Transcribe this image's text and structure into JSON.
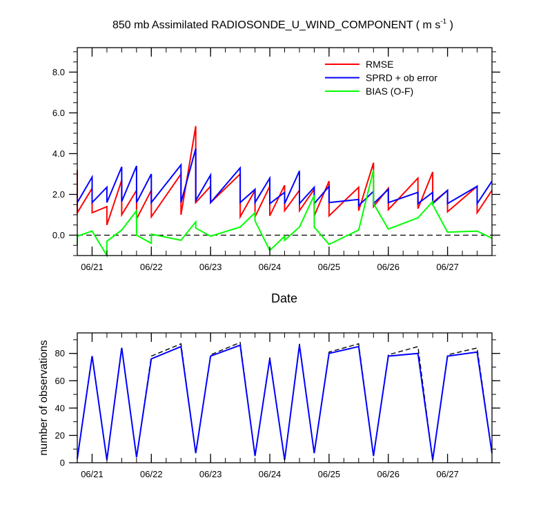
{
  "colors": {
    "rmse": "#ff0000",
    "sprd": "#0000ff",
    "bias": "#00ff00",
    "assimilated": "#0000ff",
    "possible": "#000000",
    "zero": "#000000"
  },
  "chart_data": [
    {
      "type": "line",
      "title": "850 mb Assimilated RADIOSONDE_U_WIND_COMPONENT ( m s",
      "title_superscript": "-1",
      "title_suffix": " )",
      "xlabel": "Date",
      "ylabel": "",
      "xlim": [
        0,
        7
      ],
      "ylim": [
        -1,
        9.2
      ],
      "xticks": [
        0.25,
        1.25,
        2.25,
        3.25,
        4.25,
        5.25,
        6.25
      ],
      "xticklabels": [
        "06/21",
        "06/22",
        "06/23",
        "06/24",
        "06/25",
        "06/26",
        "06/27"
      ],
      "yticks": [
        0,
        2,
        4,
        6,
        8
      ],
      "yticklabels": [
        "0.0",
        "2.0",
        "4.0",
        "6.0",
        "8.0"
      ],
      "zero_line": true,
      "legend": [
        "RMSE",
        "SPRD + ob error",
        "BIAS (O-F)"
      ],
      "series": [
        {
          "name": "RMSE",
          "x": [
            0,
            0,
            0.25,
            0.25,
            0.5,
            0.5,
            0.75,
            0.75,
            1,
            1,
            1.25,
            1.25,
            1.75,
            1.75,
            2,
            2,
            2.25,
            2.25,
            2.75,
            2.75,
            3,
            3,
            3.25,
            3.25,
            3.5,
            3.5,
            3.75,
            3.75,
            4,
            4,
            4.25,
            4.25,
            4.75,
            4.75,
            5,
            5,
            5.25,
            5.25,
            5.75,
            5.75,
            6,
            6,
            6.25,
            6.25,
            6.75,
            6.75,
            7
          ],
          "y": [
            3.2,
            1.1,
            2.3,
            1.1,
            1.4,
            0.5,
            2.7,
            1.0,
            2.2,
            0.8,
            2.2,
            0.9,
            3.0,
            1.0,
            5.35,
            1.6,
            2.4,
            1.6,
            3.0,
            0.9,
            2.2,
            0.9,
            2.4,
            0.95,
            2.45,
            1.2,
            2.2,
            1.2,
            2.25,
            0.95,
            2.65,
            0.95,
            2.35,
            1.2,
            3.55,
            1.4,
            2.3,
            1.25,
            2.8,
            1.3,
            3.1,
            1.6,
            2.2,
            1.15,
            2.4,
            1.1,
            2.2
          ]
        },
        {
          "name": "SPRD + ob error",
          "x": [
            0,
            0.25,
            0.25,
            0.5,
            0.5,
            0.75,
            0.75,
            1,
            1,
            1.25,
            1.25,
            1.75,
            1.75,
            2,
            2,
            2.25,
            2.25,
            2.75,
            2.75,
            3,
            3,
            3.25,
            3.25,
            3.5,
            3.5,
            3.75,
            3.75,
            4,
            4,
            4.25,
            4.25,
            4.75,
            4.75,
            5,
            5,
            5.25,
            5.25,
            5.75,
            5.75,
            6,
            6,
            6.25,
            6.25,
            6.75,
            6.75,
            7
          ],
          "y": [
            1.6,
            2.85,
            1.6,
            2.35,
            1.6,
            3.35,
            1.65,
            3.4,
            1.6,
            3.0,
            1.6,
            3.45,
            1.6,
            4.25,
            1.7,
            2.95,
            1.6,
            3.3,
            1.6,
            2.25,
            1.6,
            2.8,
            1.55,
            2.1,
            1.55,
            3.15,
            1.55,
            2.35,
            1.55,
            2.4,
            1.6,
            1.75,
            1.45,
            2.15,
            1.55,
            2.25,
            1.6,
            2.1,
            1.55,
            2.1,
            1.55,
            2.2,
            1.55,
            2.4,
            1.55,
            2.65
          ]
        },
        {
          "name": "BIAS (O-F)",
          "x": [
            0,
            0,
            0.25,
            0.5,
            0.5,
            0.75,
            1,
            1,
            1.25,
            1.25,
            1.75,
            2,
            2,
            2.25,
            2.75,
            3,
            3,
            3.25,
            3.5,
            3.5,
            3.75,
            4,
            4,
            4.25,
            4.75,
            5,
            5,
            5.25,
            5.75,
            6,
            6,
            6.25,
            6.75,
            7
          ],
          "y": [
            -0.5,
            -0.05,
            0.2,
            -1.0,
            -0.3,
            0.25,
            1.2,
            0.0,
            -0.4,
            0.05,
            -0.25,
            0.65,
            0.35,
            -0.05,
            0.4,
            1.1,
            0.7,
            -0.75,
            -0.05,
            -0.25,
            0.4,
            1.95,
            0.4,
            -0.45,
            0.25,
            3.2,
            1.55,
            0.3,
            0.85,
            1.65,
            1.5,
            0.15,
            0.2,
            -0.15
          ]
        }
      ]
    },
    {
      "type": "line",
      "title": "",
      "xlabel": "",
      "ylabel": "number of observations",
      "xlim": [
        0,
        7
      ],
      "ylim": [
        0,
        95
      ],
      "xticks": [
        0.25,
        1.25,
        2.25,
        3.25,
        4.25,
        5.25,
        6.25
      ],
      "xticklabels": [
        "06/21",
        "06/22",
        "06/23",
        "06/24",
        "06/25",
        "06/26",
        "06/27"
      ],
      "yticks": [
        0,
        20,
        40,
        60,
        80
      ],
      "yticklabels": [
        "0",
        "20",
        "40",
        "60",
        "80"
      ],
      "series": [
        {
          "name": "possible",
          "style": "dashed",
          "x": [
            0,
            0.25,
            0.5,
            0.75,
            1,
            1.25,
            1.75,
            2,
            2.25,
            2.75,
            3,
            3.25,
            3.5,
            3.75,
            4,
            4.25,
            4.75,
            5,
            5.25,
            5.75,
            6,
            6.25,
            6.75,
            7
          ],
          "y": [
            3,
            79,
            2,
            85,
            4,
            78,
            87,
            7,
            79,
            88,
            5,
            77,
            2,
            87,
            7,
            81,
            87,
            5,
            79,
            85,
            2,
            79,
            84,
            7
          ]
        },
        {
          "name": "assimilated",
          "style": "solid",
          "x": [
            0,
            0.25,
            0.5,
            0.75,
            1,
            1.25,
            1.75,
            2,
            2.25,
            2.75,
            3,
            3.25,
            3.5,
            3.75,
            4,
            4.25,
            4.75,
            5,
            5.25,
            5.75,
            6,
            6.25,
            6.75,
            7
          ],
          "y": [
            3,
            78,
            2,
            84,
            4,
            76,
            85,
            7,
            78,
            86,
            5,
            76,
            2,
            86,
            7,
            80,
            85,
            5,
            78,
            80,
            2,
            78,
            81,
            7
          ]
        }
      ]
    }
  ]
}
